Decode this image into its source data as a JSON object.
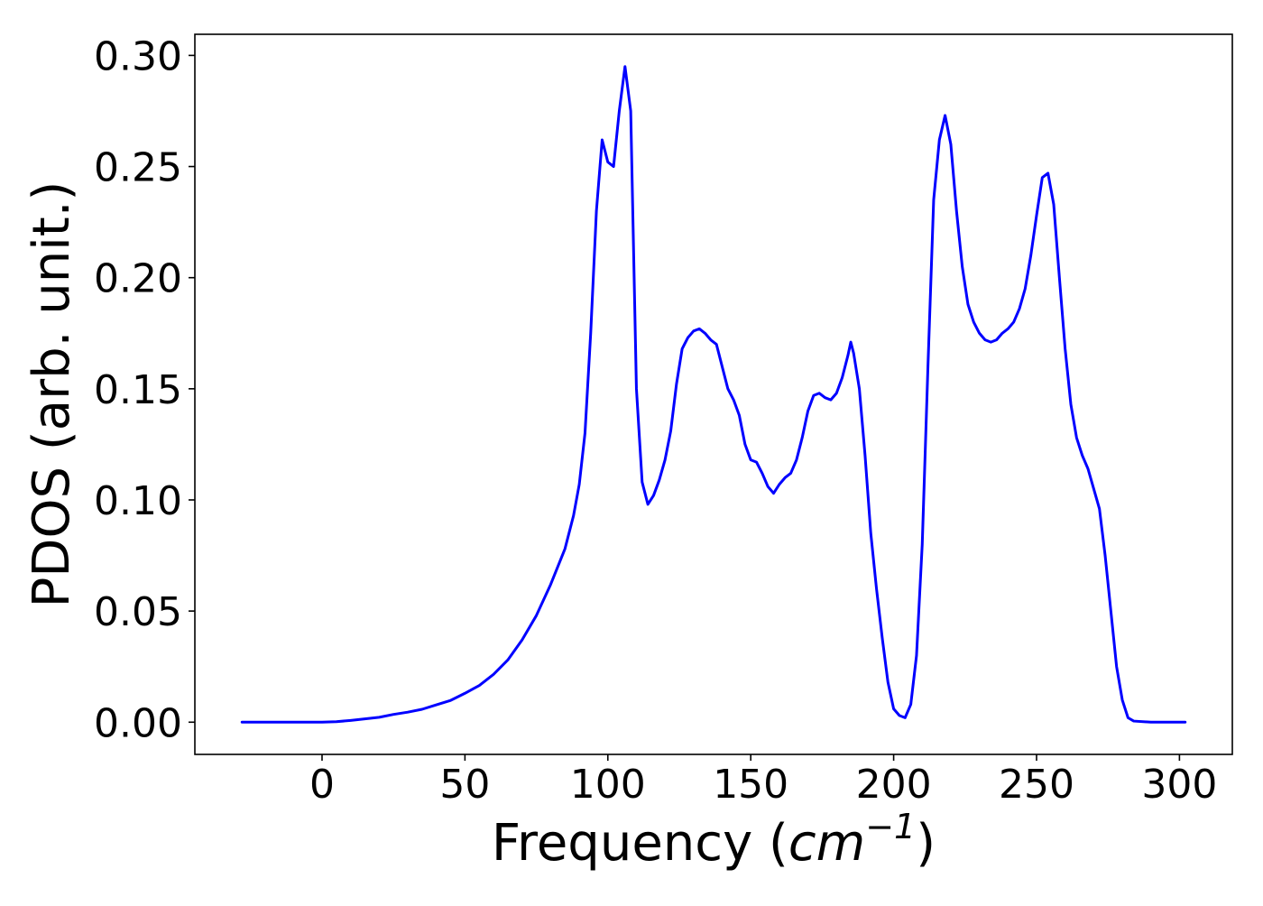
{
  "chart_data": {
    "type": "line",
    "title": "",
    "xlabel": {
      "text": "Frequency (",
      "unit_base": "cm",
      "unit_exponent": "−1",
      "suffix": ")"
    },
    "ylabel": "PDOS (arb. unit.)",
    "xlim": [
      -44.5,
      318.5
    ],
    "ylim": [
      -0.0145,
      0.3095
    ],
    "xticks": [
      0,
      50,
      100,
      150,
      200,
      250,
      300
    ],
    "xtick_labels": [
      "0",
      "50",
      "100",
      "150",
      "200",
      "250",
      "300"
    ],
    "yticks": [
      0.0,
      0.05,
      0.1,
      0.15,
      0.2,
      0.25,
      0.3
    ],
    "ytick_labels": [
      "0.00",
      "0.05",
      "0.10",
      "0.15",
      "0.20",
      "0.25",
      "0.30"
    ],
    "grid": false,
    "legend": "none",
    "series": [
      {
        "color": "#0000ff",
        "x": [
          -28,
          -20,
          -10,
          0,
          5,
          10,
          15,
          20,
          25,
          30,
          35,
          40,
          45,
          50,
          55,
          60,
          65,
          70,
          75,
          80,
          85,
          88,
          90,
          92,
          94,
          96,
          98,
          100,
          102,
          104,
          106,
          108,
          110,
          112,
          114,
          116,
          118,
          120,
          122,
          124,
          126,
          128,
          130,
          132,
          134,
          136,
          138,
          140,
          142,
          144,
          146,
          148,
          150,
          152,
          154,
          156,
          158,
          160,
          162,
          164,
          166,
          168,
          170,
          172,
          174,
          176,
          178,
          180,
          182,
          184,
          185,
          186,
          188,
          190,
          192,
          194,
          196,
          198,
          200,
          202,
          204,
          206,
          208,
          210,
          212,
          214,
          216,
          218,
          220,
          222,
          224,
          226,
          228,
          230,
          232,
          234,
          236,
          238,
          240,
          242,
          244,
          246,
          248,
          250,
          252,
          254,
          256,
          258,
          260,
          262,
          264,
          266,
          268,
          270,
          272,
          274,
          276,
          278,
          280,
          282,
          284,
          290,
          300,
          302
        ],
        "y": [
          0.0,
          0.0,
          0.0,
          0.0,
          0.0002,
          0.0008,
          0.0015,
          0.0022,
          0.0035,
          0.0045,
          0.0058,
          0.0078,
          0.0098,
          0.013,
          0.0165,
          0.0215,
          0.028,
          0.037,
          0.048,
          0.062,
          0.078,
          0.093,
          0.107,
          0.13,
          0.175,
          0.23,
          0.262,
          0.252,
          0.25,
          0.275,
          0.295,
          0.275,
          0.15,
          0.108,
          0.098,
          0.102,
          0.109,
          0.118,
          0.131,
          0.152,
          0.168,
          0.173,
          0.176,
          0.177,
          0.175,
          0.172,
          0.17,
          0.16,
          0.15,
          0.145,
          0.138,
          0.125,
          0.118,
          0.117,
          0.112,
          0.106,
          0.103,
          0.107,
          0.11,
          0.112,
          0.118,
          0.128,
          0.14,
          0.147,
          0.148,
          0.146,
          0.145,
          0.148,
          0.155,
          0.165,
          0.171,
          0.166,
          0.15,
          0.12,
          0.085,
          0.06,
          0.038,
          0.018,
          0.006,
          0.003,
          0.002,
          0.008,
          0.03,
          0.08,
          0.16,
          0.235,
          0.262,
          0.273,
          0.26,
          0.23,
          0.205,
          0.188,
          0.18,
          0.175,
          0.172,
          0.171,
          0.172,
          0.175,
          0.177,
          0.18,
          0.186,
          0.195,
          0.21,
          0.228,
          0.245,
          0.247,
          0.233,
          0.2,
          0.168,
          0.143,
          0.128,
          0.12,
          0.114,
          0.105,
          0.096,
          0.075,
          0.05,
          0.025,
          0.01,
          0.002,
          0.0005,
          0.0,
          0.0,
          0.0
        ]
      }
    ]
  }
}
